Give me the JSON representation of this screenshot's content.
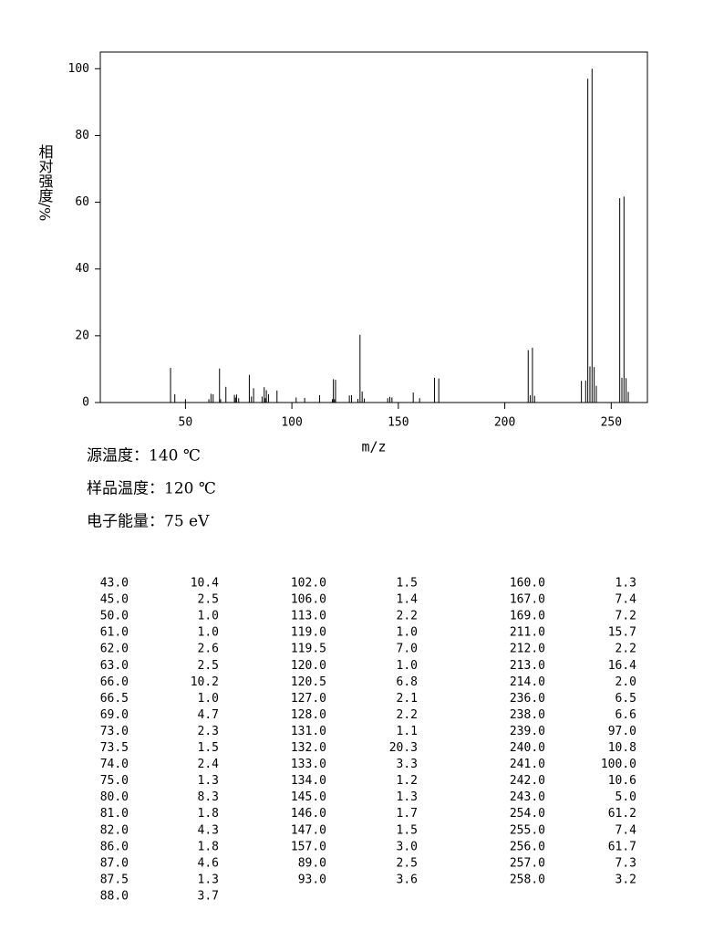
{
  "chart_data": {
    "type": "stick",
    "ylabel": "相对强度/%",
    "xlabel": "m/z",
    "color": "#000000",
    "xlim": [
      10,
      267
    ],
    "ylim": [
      0,
      105
    ],
    "xticks": [
      50,
      100,
      150,
      200,
      250
    ],
    "yticks": [
      0,
      20,
      40,
      60,
      80,
      100
    ],
    "x": [
      43,
      45,
      50,
      61,
      62,
      63,
      66,
      66.5,
      69,
      73,
      73.5,
      74,
      75,
      80,
      81,
      82,
      86,
      87,
      87.5,
      88,
      102,
      106,
      113,
      119,
      119.5,
      120,
      120.5,
      127,
      128,
      131,
      132,
      133,
      134,
      145,
      146,
      147,
      157,
      89,
      93,
      160,
      167,
      169,
      211,
      212,
      213,
      214,
      236,
      238,
      239,
      240,
      241,
      242,
      243,
      254,
      255,
      256,
      257,
      258
    ],
    "values": [
      10.4,
      2.5,
      1.0,
      1.0,
      2.6,
      2.5,
      10.2,
      1.0,
      4.7,
      2.3,
      1.5,
      2.4,
      1.3,
      8.3,
      1.8,
      4.3,
      1.8,
      4.6,
      1.3,
      3.7,
      1.5,
      1.4,
      2.2,
      1.0,
      7.0,
      1.0,
      6.8,
      2.1,
      2.2,
      1.1,
      20.3,
      3.3,
      1.2,
      1.3,
      1.7,
      1.5,
      3.0,
      2.5,
      3.6,
      1.3,
      7.4,
      7.2,
      15.7,
      2.2,
      16.4,
      2.0,
      6.5,
      6.6,
      97.0,
      10.8,
      100.0,
      10.6,
      5.0,
      61.2,
      7.4,
      61.7,
      7.3,
      3.2
    ]
  },
  "info": [
    "源温度：140 ℃",
    "样品温度：120 ℃",
    "电子能量：75 eV"
  ],
  "table": {
    "columns": [
      [
        [
          "43.0",
          "10.4"
        ],
        [
          "45.0",
          "2.5"
        ],
        [
          "50.0",
          "1.0"
        ],
        [
          "61.0",
          "1.0"
        ],
        [
          "62.0",
          "2.6"
        ],
        [
          "63.0",
          "2.5"
        ],
        [
          "66.0",
          "10.2"
        ],
        [
          "66.5",
          "1.0"
        ],
        [
          "69.0",
          "4.7"
        ],
        [
          "73.0",
          "2.3"
        ],
        [
          "73.5",
          "1.5"
        ],
        [
          "74.0",
          "2.4"
        ],
        [
          "75.0",
          "1.3"
        ],
        [
          "80.0",
          "8.3"
        ],
        [
          "81.0",
          "1.8"
        ],
        [
          "82.0",
          "4.3"
        ],
        [
          "86.0",
          "1.8"
        ],
        [
          "87.0",
          "4.6"
        ],
        [
          "87.5",
          "1.3"
        ],
        [
          "88.0",
          "3.7"
        ]
      ],
      [
        [
          "102.0",
          "1.5"
        ],
        [
          "106.0",
          "1.4"
        ],
        [
          "113.0",
          "2.2"
        ],
        [
          "119.0",
          "1.0"
        ],
        [
          "119.5",
          "7.0"
        ],
        [
          "120.0",
          "1.0"
        ],
        [
          "120.5",
          "6.8"
        ],
        [
          "127.0",
          "2.1"
        ],
        [
          "128.0",
          "2.2"
        ],
        [
          "131.0",
          "1.1"
        ],
        [
          "132.0",
          "20.3"
        ],
        [
          "133.0",
          "3.3"
        ],
        [
          "134.0",
          "1.2"
        ],
        [
          "145.0",
          "1.3"
        ],
        [
          "146.0",
          "1.7"
        ],
        [
          "147.0",
          "1.5"
        ],
        [
          "157.0",
          "3.0"
        ],
        [
          "89.0",
          "2.5"
        ],
        [
          "93.0",
          "3.6"
        ]
      ],
      [
        [
          "160.0",
          "1.3"
        ],
        [
          "167.0",
          "7.4"
        ],
        [
          "169.0",
          "7.2"
        ],
        [
          "211.0",
          "15.7"
        ],
        [
          "212.0",
          "2.2"
        ],
        [
          "213.0",
          "16.4"
        ],
        [
          "214.0",
          "2.0"
        ],
        [
          "236.0",
          "6.5"
        ],
        [
          "238.0",
          "6.6"
        ],
        [
          "239.0",
          "97.0"
        ],
        [
          "240.0",
          "10.8"
        ],
        [
          "241.0",
          "100.0"
        ],
        [
          "242.0",
          "10.6"
        ],
        [
          "243.0",
          "5.0"
        ],
        [
          "254.0",
          "61.2"
        ],
        [
          "255.0",
          "7.4"
        ],
        [
          "256.0",
          "61.7"
        ],
        [
          "257.0",
          "7.3"
        ],
        [
          "258.0",
          "3.2"
        ]
      ]
    ]
  }
}
